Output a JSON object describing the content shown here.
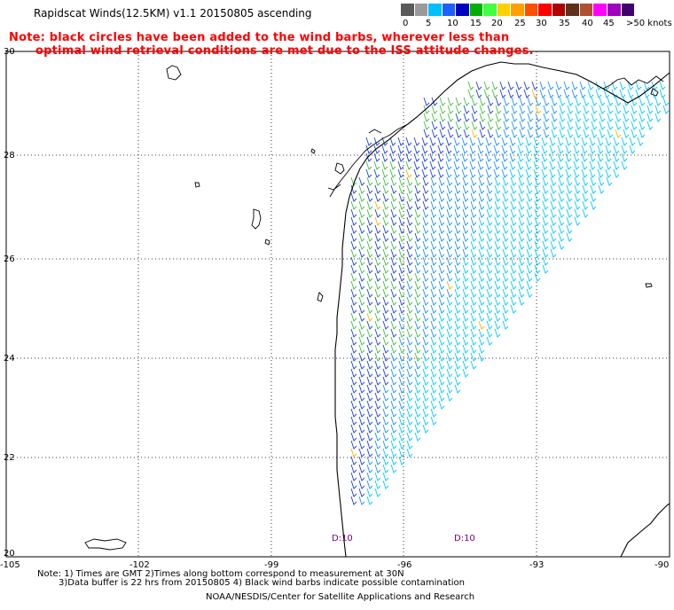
{
  "header": {
    "title": "Rapidscat Winds(12.5KM) v1.1 20150805 ascending",
    "note_line1": "Note: black circles have been added to the wind barbs, wherever less than",
    "note_line2": "optimal wind retrieval conditions are met due to the ISS attitude changes."
  },
  "colorscale": {
    "colors": [
      "#5a5a5a",
      "#9a9a9a",
      "#00bfff",
      "#1e60ff",
      "#0000c0",
      "#00b000",
      "#40ff40",
      "#ffd000",
      "#ffa000",
      "#ff5000",
      "#ff0000",
      "#b00000",
      "#603018",
      "#b05030",
      "#ff00ff",
      "#a000c0",
      "#400070"
    ],
    "labels": [
      "0",
      "5",
      "10",
      "15",
      "20",
      "25",
      "30",
      "35",
      "40",
      "45",
      ">50 knots"
    ]
  },
  "axes": {
    "lat_labels": [
      "30",
      "28",
      "26",
      "24",
      "22",
      "20"
    ],
    "lon_labels": [
      "-105",
      "-102",
      "-99",
      "-96",
      "-93",
      "-90"
    ]
  },
  "time_labels": [
    "D:10",
    "D:10"
  ],
  "footer": {
    "line1": "Note: 1) Times are GMT 2)Times along bottom correspond to measurement at 30N",
    "line2": "3)Data buffer is 22 hrs from 20150805 4) Black wind barbs indicate possible contamination",
    "line3": "NOAA/NESDIS/Center for Satellite Applications and Research"
  }
}
